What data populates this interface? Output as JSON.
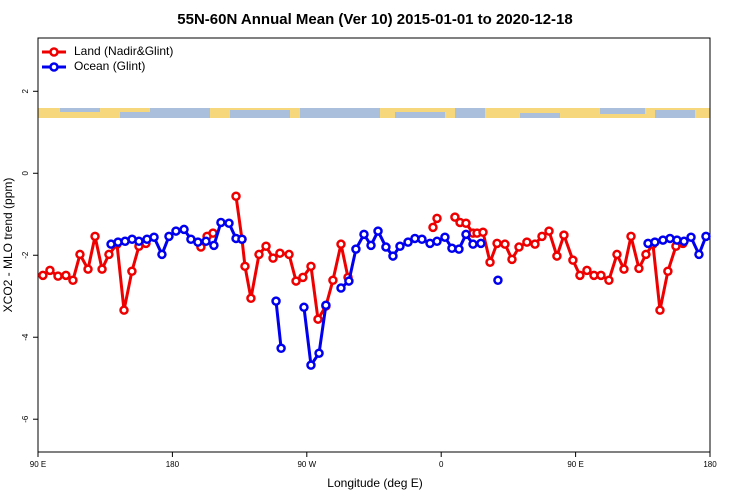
{
  "chart_data": {
    "type": "line",
    "title": "55N-60N Annual Mean (Ver 10)   2015-01-01 to 2020-12-18",
    "x_label": "Longitude (deg E)",
    "y_label": "XCO2 - MLO trend (ppm)",
    "xlim": [
      90,
      540
    ],
    "ylim": [
      -6.8,
      3.3
    ],
    "xticks": [
      {
        "value": 90,
        "label": "90 E"
      },
      180,
      {
        "value": 270,
        "label": "90 W"
      },
      {
        "value": 360,
        "label": "0"
      },
      {
        "value": 450,
        "label": "90 E"
      },
      {
        "value": 540,
        "label": "180"
      }
    ],
    "yticks": [
      -6,
      -4,
      -2,
      0,
      2
    ],
    "legend": "top-left",
    "series": [
      {
        "name": "Land (Nadir&Glint)",
        "color": "#ee0000",
        "x": [
          93.3,
          98.0,
          103.4,
          108.7,
          113.4,
          118.1,
          123.5,
          128.2,
          132.9,
          137.5,
          142.9,
          147.6,
          152.9,
          157.6,
          162.3,
          null,
          199.1,
          203.2,
          207.2,
          null,
          222.6,
          226.6,
          228.6,
          232.6,
          238.0,
          242.7,
          247.4,
          252.0,
          258.1,
          262.8,
          267.4,
          272.8,
          277.5,
          282.8,
          287.5,
          292.9,
          297.6,
          null,
          354.5,
          357.2,
          null,
          369.2,
          372.6,
          376.6,
          381.3,
          384.0,
          388.0,
          392.7,
          397.4,
          402.7,
          407.4,
          412.1,
          417.4,
          422.8,
          427.5,
          432.2,
          437.5,
          442.2,
          448.2,
          452.9,
          457.6,
          462.3,
          467.0,
          472.3,
          477.7,
          482.4,
          487.1,
          492.4,
          497.1,
          501.8,
          506.5,
          511.8,
          517.2,
          521.9
        ],
        "values": [
          -2.49,
          -2.37,
          -2.51,
          -2.49,
          -2.61,
          -1.98,
          -2.34,
          -1.54,
          -2.34,
          -1.98,
          -1.73,
          -3.34,
          -2.39,
          -1.78,
          -1.71,
          null,
          -1.8,
          -1.54,
          -1.46,
          null,
          -0.56,
          -1.61,
          -2.27,
          -3.05,
          -1.98,
          -1.78,
          -2.07,
          -1.95,
          -1.98,
          -2.63,
          -2.54,
          -2.27,
          -3.56,
          -3.24,
          -2.61,
          -1.73,
          -2.54,
          null,
          -1.32,
          -1.1,
          null,
          -1.07,
          -1.2,
          -1.22,
          -1.46,
          -1.46,
          -1.44,
          -2.17,
          -1.71,
          -1.73,
          -2.1,
          -1.8,
          -1.68,
          -1.73,
          -1.54,
          -1.41,
          -2.02,
          -1.51,
          -2.12,
          -2.49,
          -2.37,
          -2.49,
          -2.49,
          -2.61,
          -1.98,
          -2.34,
          -1.54,
          -2.32,
          -1.98,
          -1.73,
          -3.34,
          -2.39,
          -1.78,
          -1.71
        ]
      },
      {
        "name": "Ocean (Glint)",
        "color": "#0000ee",
        "x": [
          138.9,
          143.6,
          148.3,
          153.0,
          157.6,
          163.0,
          167.7,
          173.0,
          177.7,
          182.4,
          187.8,
          192.4,
          197.1,
          202.5,
          207.8,
          212.5,
          217.9,
          222.6,
          226.6,
          null,
          249.4,
          252.8,
          null,
          268.1,
          272.8,
          278.2,
          282.8,
          null,
          292.9,
          298.2,
          302.9,
          308.3,
          313.0,
          317.7,
          323.0,
          327.7,
          332.4,
          337.8,
          342.4,
          347.1,
          352.5,
          357.2,
          362.5,
          367.2,
          371.9,
          376.6,
          381.3,
          386.6,
          null,
          398.0,
          null,
          498.5,
          503.1,
          508.5,
          513.2,
          517.9,
          522.6,
          527.3,
          532.6,
          537.3
        ],
        "values": [
          -1.73,
          -1.68,
          -1.66,
          -1.61,
          -1.66,
          -1.61,
          -1.56,
          -1.98,
          -1.54,
          -1.41,
          -1.37,
          -1.61,
          -1.68,
          -1.66,
          -1.76,
          -1.2,
          -1.22,
          -1.59,
          -1.61,
          null,
          -3.12,
          -4.27,
          null,
          -3.27,
          -4.68,
          -4.39,
          -3.22,
          null,
          -2.8,
          -2.63,
          -1.85,
          -1.49,
          -1.76,
          -1.41,
          -1.8,
          -2.02,
          -1.78,
          -1.68,
          -1.59,
          -1.61,
          -1.71,
          -1.66,
          -1.56,
          -1.83,
          -1.85,
          -1.49,
          -1.73,
          -1.71,
          null,
          -2.61,
          null,
          -1.71,
          -1.68,
          -1.63,
          -1.59,
          -1.63,
          -1.66,
          -1.56,
          -1.98,
          -1.54
        ]
      }
    ]
  }
}
